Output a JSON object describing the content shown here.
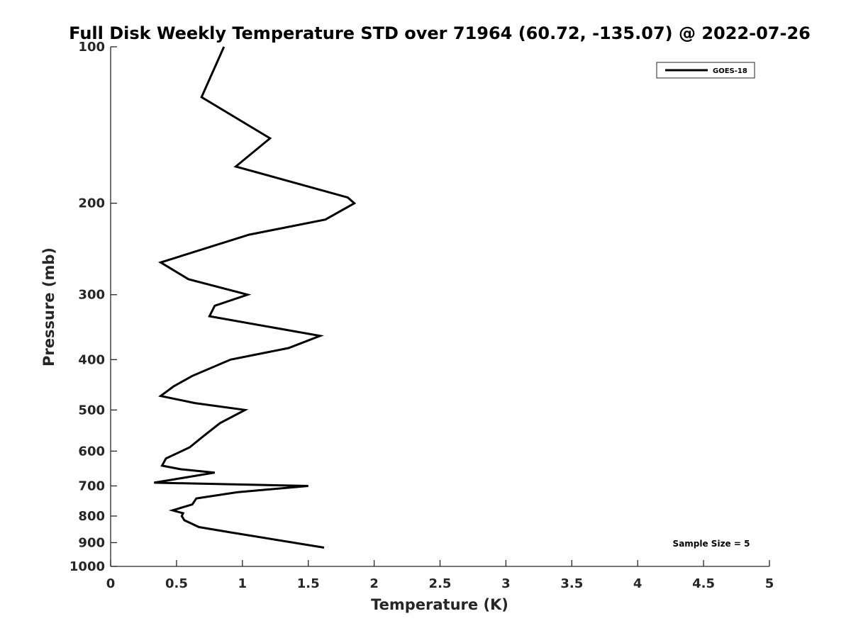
{
  "chart_data": {
    "type": "line",
    "title": "Full Disk Weekly Temperature STD over 71964 (60.72, -135.07) @ 2022-07-26",
    "xlabel": "Temperature (K)",
    "ylabel": "Pressure (mb)",
    "xlim": [
      0,
      5
    ],
    "ylim": [
      1000,
      100
    ],
    "y_scale": "log",
    "y_reversed": true,
    "x_ticks": [
      "0",
      "0.5",
      "1",
      "1.5",
      "2",
      "2.5",
      "3",
      "3.5",
      "4",
      "4.5",
      "5"
    ],
    "y_ticks": [
      "100",
      "200",
      "300",
      "400",
      "500",
      "600",
      "700",
      "800",
      "900",
      "1000"
    ],
    "grid": false,
    "legend_position": "top-right",
    "annotation": "Sample Size = 5",
    "line_color": "#000000",
    "series": [
      {
        "name": "GOES-18",
        "points": [
          {
            "x": 0.86,
            "p": 100
          },
          {
            "x": 0.69,
            "p": 125
          },
          {
            "x": 1.21,
            "p": 150
          },
          {
            "x": 0.95,
            "p": 170
          },
          {
            "x": 1.8,
            "p": 195
          },
          {
            "x": 1.85,
            "p": 200
          },
          {
            "x": 1.63,
            "p": 215
          },
          {
            "x": 1.05,
            "p": 230
          },
          {
            "x": 0.38,
            "p": 260
          },
          {
            "x": 0.59,
            "p": 280
          },
          {
            "x": 1.04,
            "p": 300
          },
          {
            "x": 0.79,
            "p": 315
          },
          {
            "x": 0.75,
            "p": 330
          },
          {
            "x": 1.59,
            "p": 360
          },
          {
            "x": 1.35,
            "p": 380
          },
          {
            "x": 0.91,
            "p": 400
          },
          {
            "x": 0.62,
            "p": 430
          },
          {
            "x": 0.48,
            "p": 450
          },
          {
            "x": 0.38,
            "p": 470
          },
          {
            "x": 0.64,
            "p": 485
          },
          {
            "x": 1.02,
            "p": 500
          },
          {
            "x": 0.83,
            "p": 530
          },
          {
            "x": 0.71,
            "p": 560
          },
          {
            "x": 0.6,
            "p": 590
          },
          {
            "x": 0.42,
            "p": 620
          },
          {
            "x": 0.39,
            "p": 640
          },
          {
            "x": 0.53,
            "p": 650
          },
          {
            "x": 0.79,
            "p": 660
          },
          {
            "x": 0.33,
            "p": 690
          },
          {
            "x": 1.5,
            "p": 700
          },
          {
            "x": 0.96,
            "p": 720
          },
          {
            "x": 0.65,
            "p": 740
          },
          {
            "x": 0.62,
            "p": 760
          },
          {
            "x": 0.47,
            "p": 780
          },
          {
            "x": 0.55,
            "p": 790
          },
          {
            "x": 0.54,
            "p": 800
          },
          {
            "x": 0.56,
            "p": 815
          },
          {
            "x": 0.67,
            "p": 840
          },
          {
            "x": 0.91,
            "p": 860
          },
          {
            "x": 1.62,
            "p": 920
          }
        ]
      }
    ]
  }
}
